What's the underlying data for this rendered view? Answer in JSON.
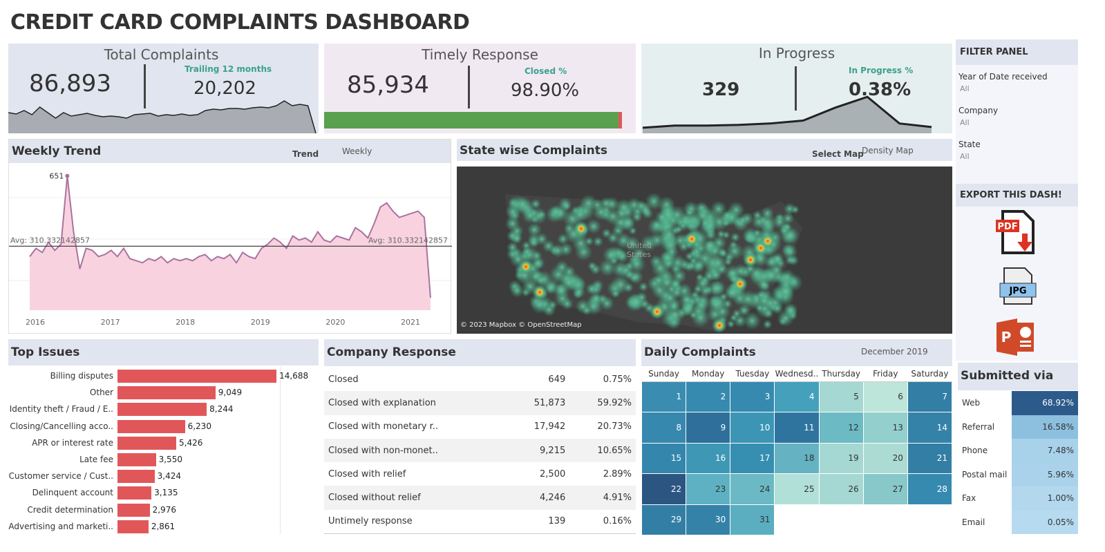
{
  "title": "CREDIT CARD COMPLAINTS DASHBOARD",
  "kpis": {
    "total": {
      "title": "Total Complaints",
      "value": "86,893",
      "sub_label": "Trailing 12 months",
      "sub_value": "20,202",
      "spark": [
        30,
        28,
        33,
        27,
        38,
        30,
        22,
        30,
        25,
        27,
        29,
        26,
        24,
        25,
        24,
        22,
        27,
        28,
        29,
        25,
        27,
        26,
        28,
        26,
        27,
        33,
        35,
        34,
        36,
        36,
        35,
        37,
        38,
        37,
        40,
        47,
        40,
        42,
        40,
        0
      ]
    },
    "timely": {
      "title": "Timely Response",
      "value": "85,934",
      "sub_label": "Closed %",
      "sub_value": "98.90%",
      "progress": 98.9,
      "colors": {
        "good": "#59a14f",
        "bad": "#e15759"
      }
    },
    "progress": {
      "title": "In Progress",
      "value": "329",
      "sub_label": "In Progress %",
      "sub_value": "0.38%",
      "spark": [
        2,
        5,
        5,
        6,
        8,
        12,
        30,
        45,
        8,
        3
      ]
    }
  },
  "weekly": {
    "title": "Weekly Trend",
    "param_label": "Trend",
    "param_value": "Weekly",
    "peak_label": "651",
    "avg_label_left": "Avg: 310.332142857",
    "avg_label_right": "Avg: 310.332142857",
    "chart_data": {
      "type": "area",
      "x_ticks": [
        "2016",
        "2017",
        "2018",
        "2019",
        "2020",
        "2021"
      ],
      "ylim": [
        0,
        700
      ],
      "average": 310.33,
      "start": "2015-12",
      "values": [
        260,
        300,
        280,
        330,
        290,
        320,
        651,
        380,
        200,
        300,
        290,
        260,
        270,
        290,
        260,
        300,
        250,
        240,
        230,
        250,
        240,
        260,
        230,
        250,
        240,
        250,
        240,
        260,
        270,
        240,
        260,
        250,
        270,
        230,
        280,
        260,
        250,
        300,
        320,
        350,
        330,
        300,
        360,
        340,
        350,
        330,
        380,
        340,
        330,
        360,
        350,
        340,
        400,
        380,
        350,
        420,
        500,
        520,
        480,
        450,
        460,
        470,
        480,
        450,
        60
      ],
      "colors": {
        "line": "#a9739f",
        "fill": "#f9d2e0"
      }
    }
  },
  "map": {
    "title": "State wise Complaints",
    "select_label": "Select Map",
    "select_value": "Density Map",
    "country_label": "United States",
    "attribution": "© 2023 Mapbox © OpenStreetMap"
  },
  "filters": {
    "title": "FILTER PANEL",
    "items": [
      {
        "label": "Year of Date received",
        "value": "All"
      },
      {
        "label": "Company",
        "value": "All"
      },
      {
        "label": "State",
        "value": "All"
      }
    ]
  },
  "export": {
    "title": "EXPORT THIS DASH!",
    "pdf": "PDF",
    "jpg": "JPG",
    "ppt": "P"
  },
  "issues": {
    "title": "Top Issues",
    "chart_data": {
      "type": "bar",
      "categories": [
        "Billing disputes",
        "Other",
        "Identity theft / Fraud / E..",
        "Closing/Cancelling acco..",
        "APR or interest rate",
        "Late fee",
        "Customer service / Cust..",
        "Delinquent account",
        "Credit determination",
        "Advertising and marketi.."
      ],
      "values": [
        14688,
        9049,
        8244,
        6230,
        5426,
        3550,
        3424,
        3135,
        2976,
        2861
      ],
      "labels": [
        "14,688",
        "9,049",
        "8,244",
        "6,230",
        "5,426",
        "3,550",
        "3,424",
        "3,135",
        "2,976",
        "2,861"
      ],
      "color": "#e15759"
    }
  },
  "response": {
    "title": "Company Response",
    "rows": [
      [
        "Closed",
        "649",
        "0.75%"
      ],
      [
        "Closed with explanation",
        "51,873",
        "59.92%"
      ],
      [
        "Closed with monetary r..",
        "17,942",
        "20.73%"
      ],
      [
        "Closed with non-monet..",
        "9,215",
        "10.65%"
      ],
      [
        "Closed with relief",
        "2,500",
        "2.89%"
      ],
      [
        "Closed without relief",
        "4,246",
        "4.91%"
      ],
      [
        "Untimely response",
        "139",
        "0.16%"
      ]
    ]
  },
  "daily": {
    "title": "Daily Complaints",
    "month": "December 2019",
    "days": [
      "Sunday",
      "Monday",
      "Tuesday",
      "Wednesd..",
      "Thursday",
      "Friday",
      "Saturday"
    ],
    "cells": [
      [
        "1",
        "#3a8db0"
      ],
      [
        "2",
        "#368aaf"
      ],
      [
        "3",
        "#368aaf"
      ],
      [
        "4",
        "#45a0bb"
      ],
      [
        "5",
        "#a5d8d3"
      ],
      [
        "6",
        "#bde5da"
      ],
      [
        "7",
        "#337ea4"
      ],
      [
        "8",
        "#3688ae"
      ],
      [
        "9",
        "#2f6f9b"
      ],
      [
        "10",
        "#3c95b5"
      ],
      [
        "11",
        "#2f749f"
      ],
      [
        "12",
        "#6bbac4"
      ],
      [
        "13",
        "#93cfcd"
      ],
      [
        "14",
        "#3582a8"
      ],
      [
        "15",
        "#3586ac"
      ],
      [
        "16",
        "#3f97b6"
      ],
      [
        "17",
        "#368eb1"
      ],
      [
        "18",
        "#64b2c2"
      ],
      [
        "19",
        "#a5d8d3"
      ],
      [
        "20",
        "#acdbd4"
      ],
      [
        "21",
        "#337ea4"
      ],
      [
        "22",
        "#2c5682"
      ],
      [
        "23",
        "#5eb1c2"
      ],
      [
        "24",
        "#6bb9c4"
      ],
      [
        "25",
        "#b1e0d8"
      ],
      [
        "26",
        "#a5d8d3"
      ],
      [
        "27",
        "#88c8ca"
      ],
      [
        "28",
        "#368aaf"
      ],
      [
        "29",
        "#337ea4"
      ],
      [
        "30",
        "#3582a8"
      ],
      [
        "31",
        "#5aaec0"
      ]
    ]
  },
  "submitted": {
    "title": "Submitted via",
    "rows": [
      [
        "Web",
        "68.92%",
        "#2c5a8a"
      ],
      [
        "Referral",
        "16.58%",
        "#8dbfde"
      ],
      [
        "Phone",
        "7.48%",
        "#a8d1ea"
      ],
      [
        "Postal mail",
        "5.96%",
        "#aad3eb"
      ],
      [
        "Fax",
        "1.00%",
        "#b3d8ee"
      ],
      [
        "Email",
        "0.05%",
        "#b6daef"
      ]
    ]
  }
}
